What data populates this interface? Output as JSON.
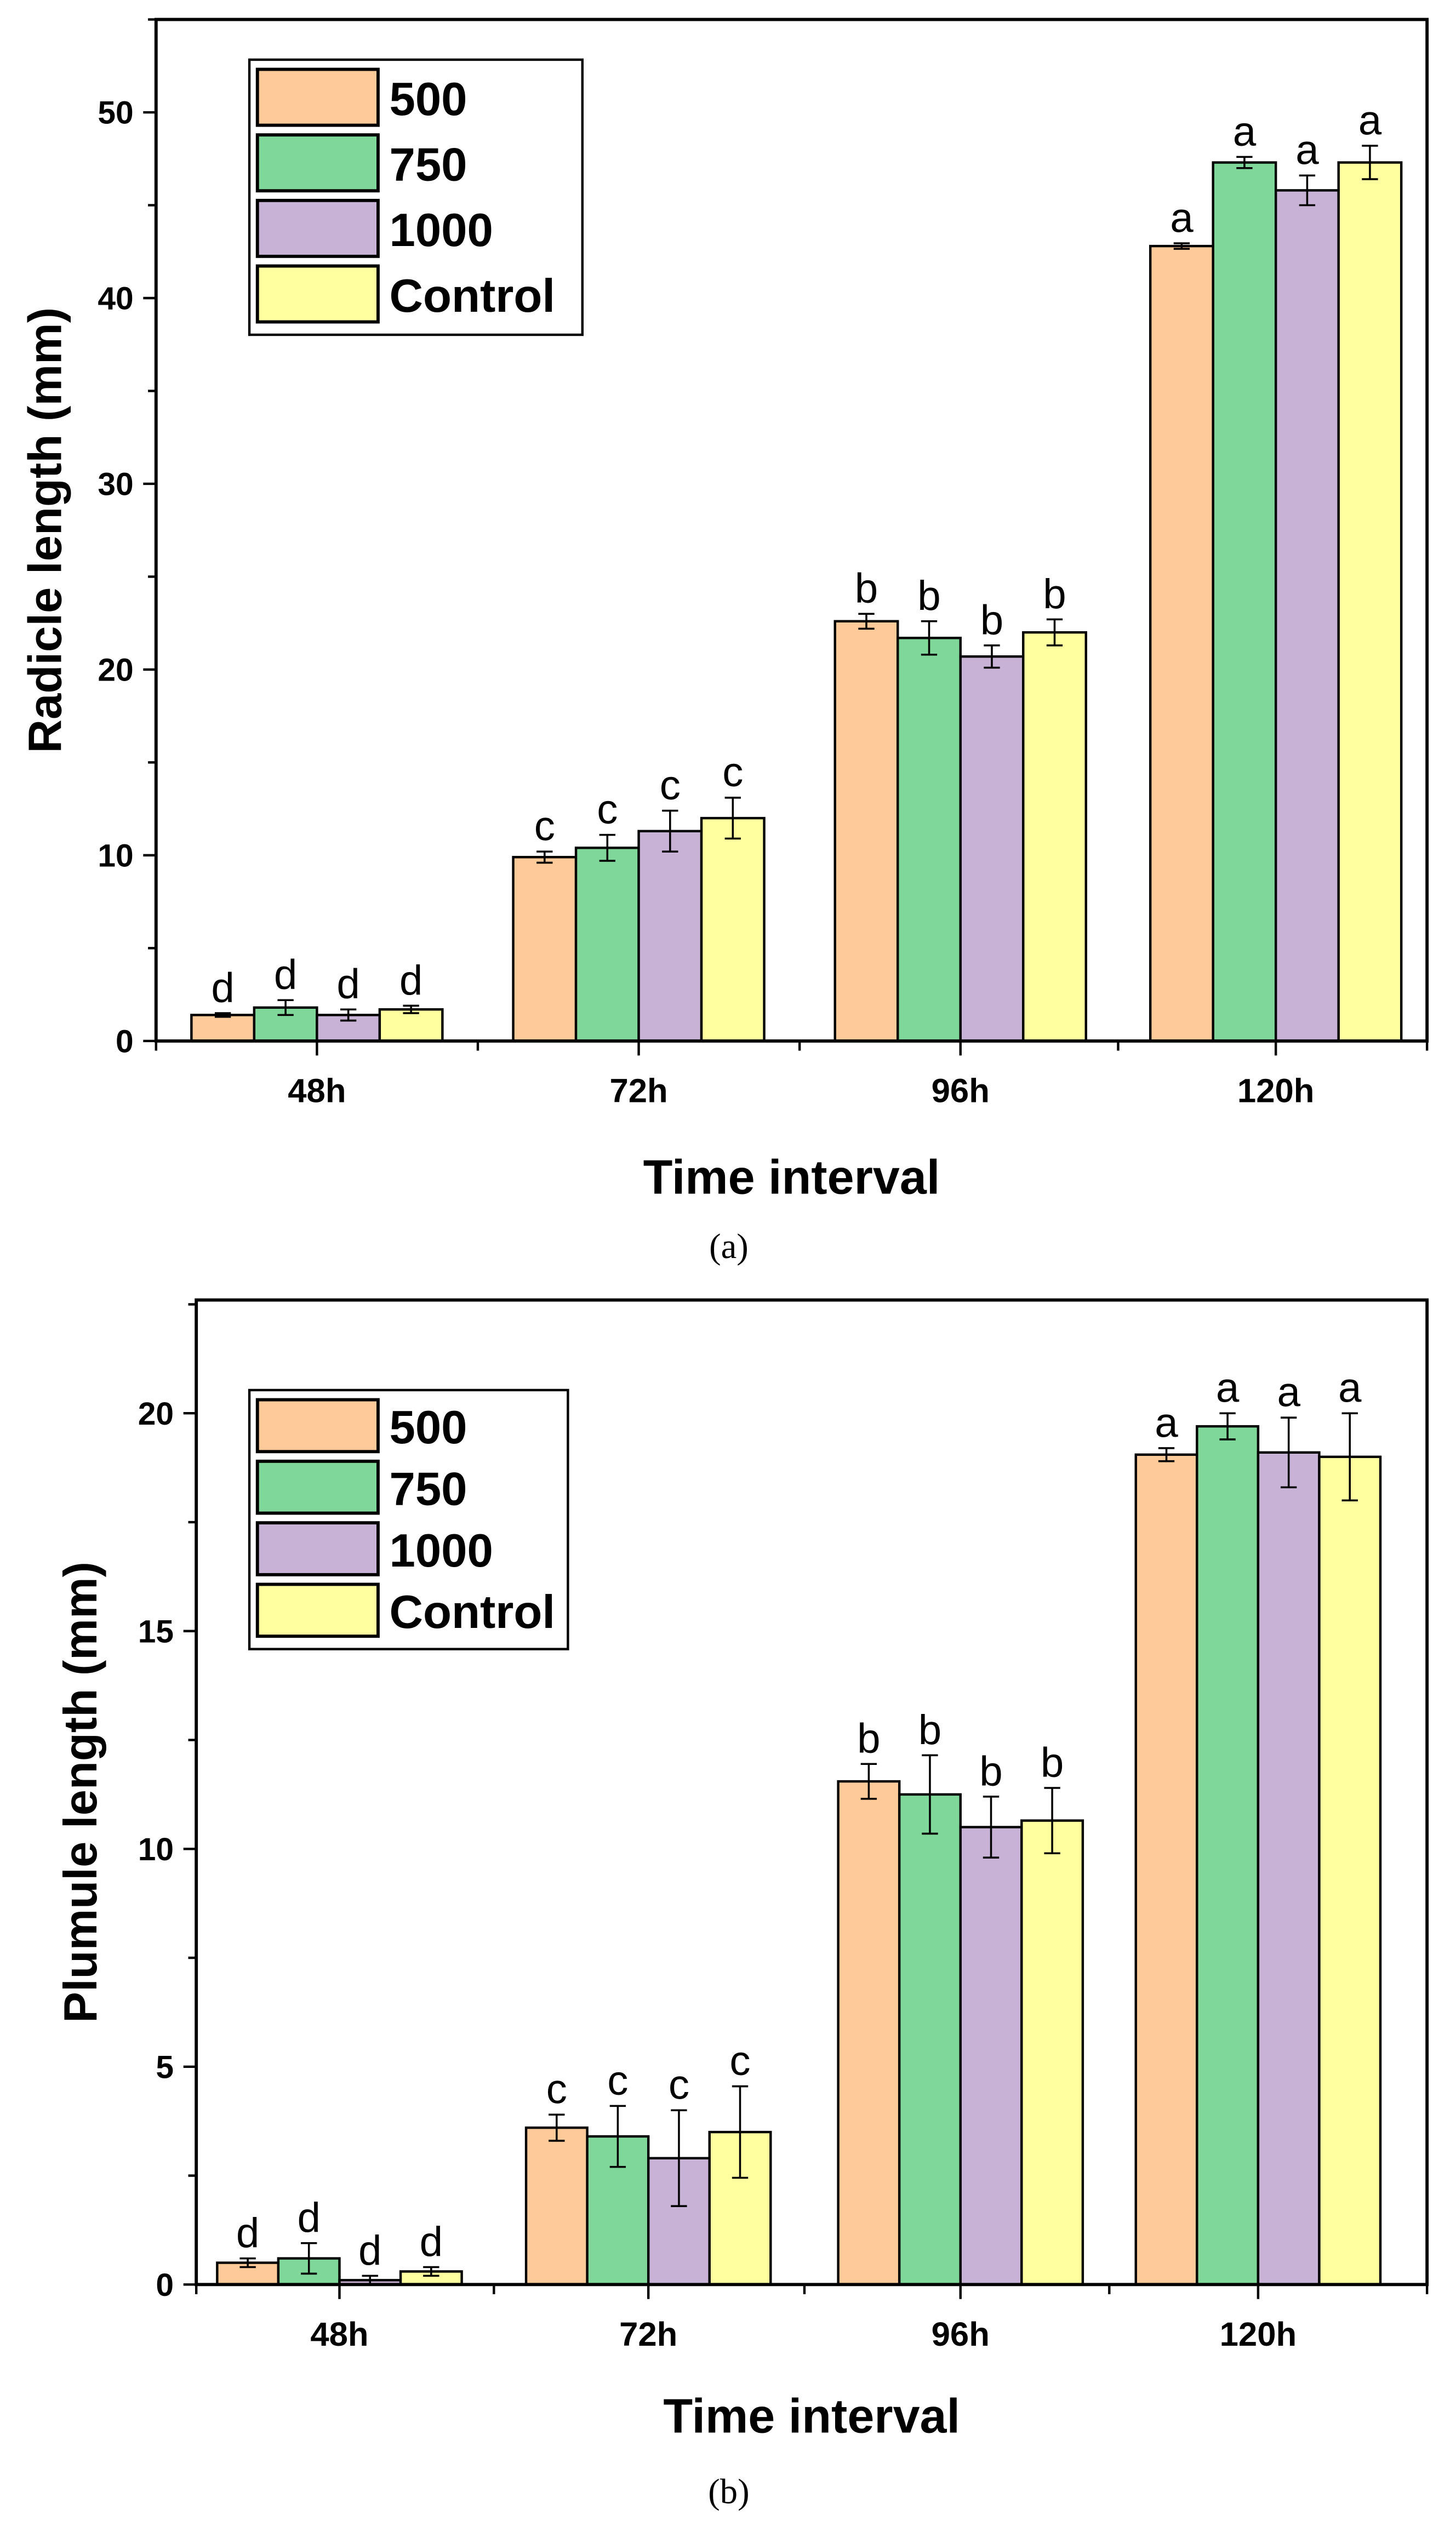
{
  "colors": {
    "500": "#FFCA99",
    "750": "#7FD899",
    "1000": "#C8B2D6",
    "Control": "#FFFF9F"
  },
  "chart_data": [
    {
      "type": "bar",
      "caption": "(a)",
      "xlabel": "Time interval",
      "ylabel": "Radicle length (mm)",
      "ylim": [
        0,
        55
      ],
      "yticks": [
        0,
        10,
        20,
        30,
        40,
        50
      ],
      "categories": [
        "48h",
        "72h",
        "96h",
        "120h"
      ],
      "legend_position": "top-left",
      "series": [
        {
          "name": "500",
          "values": [
            1.4,
            9.9,
            22.6,
            42.8
          ],
          "errors": [
            0.1,
            0.3,
            0.4,
            0.15
          ],
          "letters": [
            "d",
            "c",
            "b",
            "a"
          ]
        },
        {
          "name": "750",
          "values": [
            1.8,
            10.4,
            21.7,
            47.3
          ],
          "errors": [
            0.4,
            0.7,
            0.9,
            0.3
          ],
          "letters": [
            "d",
            "c",
            "b",
            "a"
          ]
        },
        {
          "name": "1000",
          "values": [
            1.4,
            11.3,
            20.7,
            45.8
          ],
          "errors": [
            0.3,
            1.1,
            0.6,
            0.8
          ],
          "letters": [
            "d",
            "c",
            "b",
            "a"
          ]
        },
        {
          "name": "Control",
          "values": [
            1.7,
            12.0,
            22.0,
            47.3
          ],
          "errors": [
            0.2,
            1.1,
            0.7,
            0.9
          ],
          "letters": [
            "d",
            "c",
            "b",
            "a"
          ]
        }
      ]
    },
    {
      "type": "bar",
      "caption": "(b)",
      "xlabel": "Time interval",
      "ylabel": "Plumule length (mm)",
      "ylim": [
        0,
        22.6
      ],
      "yticks": [
        0,
        5,
        10,
        15,
        20
      ],
      "categories": [
        "48h",
        "72h",
        "96h",
        "120h"
      ],
      "legend_position": "top-left",
      "series": [
        {
          "name": "500",
          "values": [
            0.5,
            3.6,
            11.55,
            19.05
          ],
          "errors": [
            0.1,
            0.3,
            0.4,
            0.15
          ],
          "letters": [
            "d",
            "c",
            "b",
            "a"
          ]
        },
        {
          "name": "750",
          "values": [
            0.6,
            3.4,
            11.25,
            19.7
          ],
          "errors": [
            0.35,
            0.7,
            0.9,
            0.3
          ],
          "letters": [
            "d",
            "c",
            "b",
            "a"
          ]
        },
        {
          "name": "1000",
          "values": [
            0.1,
            2.9,
            10.5,
            19.1
          ],
          "errors": [
            0.1,
            1.1,
            0.7,
            0.8
          ],
          "letters": [
            "d",
            "c",
            "b",
            "a"
          ]
        },
        {
          "name": "Control",
          "values": [
            0.3,
            3.5,
            10.65,
            19.0
          ],
          "errors": [
            0.1,
            1.05,
            0.75,
            1.0
          ],
          "letters": [
            "d",
            "c",
            "b",
            "a"
          ]
        }
      ]
    }
  ]
}
